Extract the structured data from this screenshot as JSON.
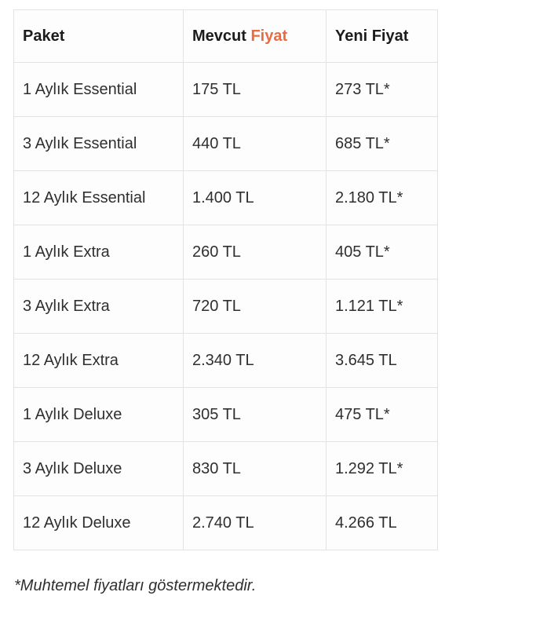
{
  "colors": {
    "accent_orange": "#ED6A40",
    "border_gray": "#E3E3E3",
    "header_text": "#1C1C1E",
    "body_text": "#2F2F31"
  },
  "chart_data": {
    "type": "table",
    "columns": [
      {
        "id": "paket",
        "label": "Paket"
      },
      {
        "id": "mevcut",
        "label": "Mevcut Fiyat",
        "label_prefix": "Mevcut",
        "label_highlight": "Fiyat"
      },
      {
        "id": "yeni",
        "label": "Yeni Fiyat"
      }
    ],
    "rows": [
      {
        "paket": "1 Aylık Essential",
        "mevcut": "175 TL",
        "yeni": "273 TL*"
      },
      {
        "paket": "3 Aylık Essential",
        "mevcut": "440 TL",
        "yeni": "685 TL*"
      },
      {
        "paket": "12 Aylık Essential",
        "mevcut": "1.400 TL",
        "yeni": "2.180 TL*"
      },
      {
        "paket": "1 Aylık Extra",
        "mevcut": "260 TL",
        "yeni": "405 TL*"
      },
      {
        "paket": "3 Aylık Extra",
        "mevcut": "720 TL",
        "yeni": "1.121 TL*"
      },
      {
        "paket": "12 Aylık Extra",
        "mevcut": "2.340 TL",
        "yeni": "3.645 TL"
      },
      {
        "paket": "1 Aylık Deluxe",
        "mevcut": "305 TL",
        "yeni": "475 TL*"
      },
      {
        "paket": "3 Aylık Deluxe",
        "mevcut": "830 TL",
        "yeni": "1.292 TL*"
      },
      {
        "paket": "12 Aylık Deluxe",
        "mevcut": "2.740 TL",
        "yeni": "4.266 TL"
      }
    ],
    "footnote": "*Muhtemel fiyatları göstermektedir."
  }
}
